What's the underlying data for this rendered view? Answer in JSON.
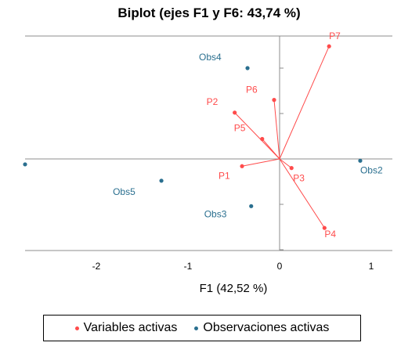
{
  "chart_data": {
    "type": "scatter",
    "title": "Biplot (ejes F1 y F6: 43,74 %)",
    "xlabel": "F1 (42,52 %)",
    "ylabel": "",
    "xlim": [
      -2.8,
      1.25
    ],
    "ylim": [
      -1.0,
      1.3
    ],
    "x_ticks": [
      "-2",
      "-1",
      "0",
      "1"
    ],
    "x_tick_values": [
      -2,
      -1,
      0,
      1
    ],
    "grid": false,
    "legend_position": "bottom",
    "colors": {
      "variables": "#ff4b4b",
      "observations": "#2a6f8f"
    },
    "series": [
      {
        "name": "Variables activas",
        "kind": "vectors",
        "points": [
          {
            "label": "P1",
            "x": -0.41,
            "y": -0.08
          },
          {
            "label": "P2",
            "x": -0.49,
            "y": 0.51
          },
          {
            "label": "P3",
            "x": 0.13,
            "y": -0.1
          },
          {
            "label": "P4",
            "x": 0.49,
            "y": -0.76
          },
          {
            "label": "P5",
            "x": -0.19,
            "y": 0.22
          },
          {
            "label": "P6",
            "x": -0.06,
            "y": 0.65
          },
          {
            "label": "P7",
            "x": 0.54,
            "y": 1.24
          }
        ]
      },
      {
        "name": "Observaciones activas",
        "kind": "points",
        "points": [
          {
            "label": "Obs2",
            "x": 0.88,
            "y": -0.02
          },
          {
            "label": "Obs3",
            "x": -0.31,
            "y": -0.52
          },
          {
            "label": "Obs4",
            "x": -0.35,
            "y": 1.0
          },
          {
            "label": "Obs5",
            "x": -1.29,
            "y": -0.24
          },
          {
            "label": "",
            "x": -2.79,
            "y": -0.06
          }
        ]
      }
    ]
  },
  "legend": {
    "variables_label": "Variables activas",
    "observations_label": "Observaciones activas"
  }
}
